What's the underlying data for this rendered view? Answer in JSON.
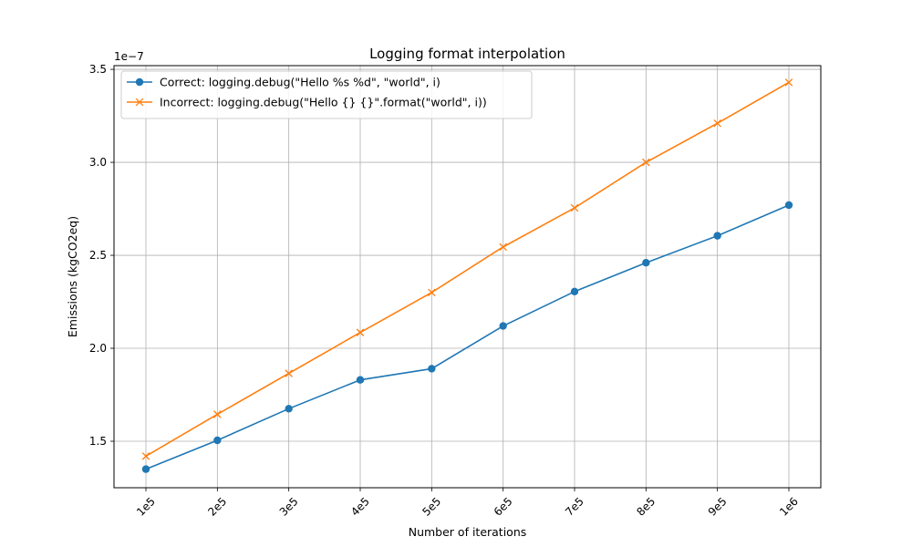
{
  "chart_data": {
    "type": "line",
    "title": "Logging format interpolation",
    "xlabel": "Number of iterations",
    "ylabel": "Emissions (kgCO2eq)",
    "y_offset_label": "1e−7",
    "y_scale_factor": 1e-07,
    "categories": [
      "1e5",
      "2e5",
      "3e5",
      "4e5",
      "5e5",
      "6e5",
      "7e5",
      "8e5",
      "9e5",
      "1e6"
    ],
    "ylim": [
      1.25,
      3.52
    ],
    "yticks": [
      1.5,
      2.0,
      2.5,
      3.0,
      3.5
    ],
    "ytick_labels": [
      "1.5",
      "2.0",
      "2.5",
      "3.0",
      "3.5"
    ],
    "grid": true,
    "legend_position": "top-left",
    "series": [
      {
        "name": "Correct: logging.debug(\"Hello %s %d\", \"world\", i)",
        "color": "#1f77b4",
        "marker": "circle",
        "values": [
          1.35,
          1.505,
          1.675,
          1.83,
          1.89,
          2.12,
          2.305,
          2.46,
          2.605,
          2.77
        ]
      },
      {
        "name": "Incorrect: logging.debug(\"Hello {} {}\".format(\"world\", i))",
        "color": "#ff7f0e",
        "marker": "x",
        "values": [
          1.42,
          1.645,
          1.865,
          2.085,
          2.3,
          2.545,
          2.755,
          3.0,
          3.21,
          3.43
        ]
      }
    ]
  }
}
